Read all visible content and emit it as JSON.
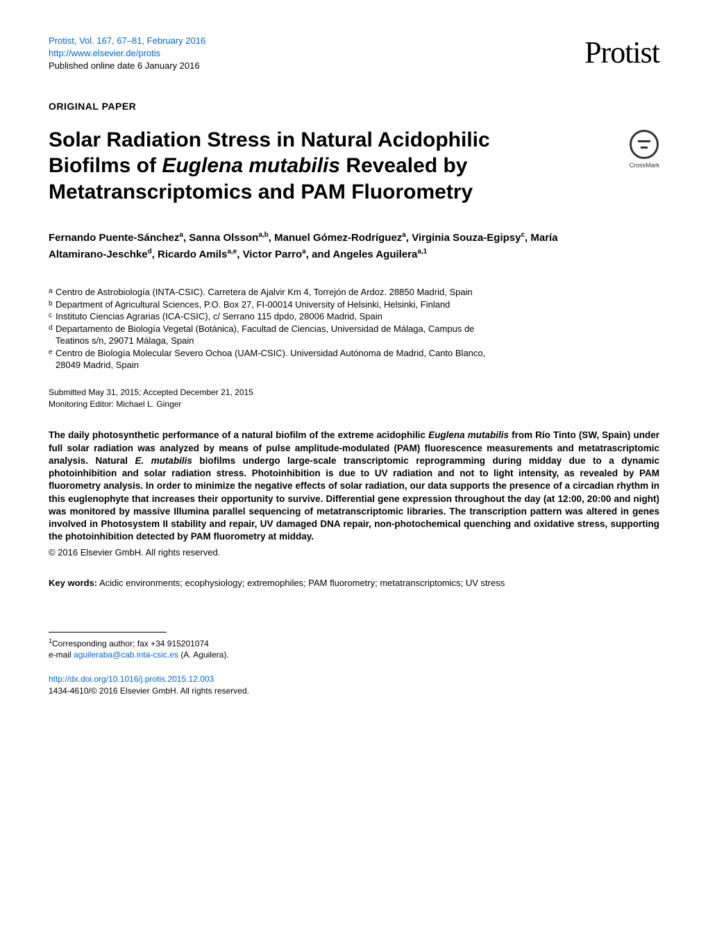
{
  "header": {
    "journal_citation": "Protist, Vol. 167, 67–81, February 2016",
    "journal_url": "http://www.elsevier.de/protis",
    "pub_online": "Published online date 6 January 2016",
    "journal_name": "Protist"
  },
  "paper_type": "ORIGINAL PAPER",
  "title_parts": {
    "pre": "Solar Radiation Stress in Natural Acidophilic Biofilms of ",
    "italic": "Euglena mutabilis",
    "post": " Revealed by Metatranscriptomics and PAM Fluorometry"
  },
  "crossmark_label": "CrossMark",
  "authors": [
    {
      "name": "Fernando Puente-Sánchez",
      "aff": "a",
      "sep": ",  "
    },
    {
      "name": "Sanna Olsson",
      "aff": "a,b",
      "sep": ",  "
    },
    {
      "name": "Manuel Gómez-Rodríguez",
      "aff": "a",
      "sep": ", "
    },
    {
      "name": "Virginia Souza-Egipsy",
      "aff": "c",
      "sep": ",  "
    },
    {
      "name": "María Altamirano-Jeschke",
      "aff": "d",
      "sep": ",  "
    },
    {
      "name": "Ricardo Amils",
      "aff": "a,e",
      "sep": ", "
    },
    {
      "name": "Victor Parro",
      "aff": "a",
      "sep": ", and  "
    },
    {
      "name": "Angeles Aguilera",
      "aff": "a,1",
      "sep": ""
    }
  ],
  "affiliations": [
    {
      "key": "a",
      "text": "Centro de Astrobiología (INTA-CSIC). Carretera de Ajalvir Km 4, Torrejón de Ardoz. 28850 Madrid, Spain"
    },
    {
      "key": "b",
      "text": "Department of Agricultural Sciences, P.O. Box 27, FI-00014 University of Helsinki, Helsinki, Finland"
    },
    {
      "key": "c",
      "text": "Instituto Ciencias Agrarias (ICA-CSIC), c/ Serrano 115 dpdo, 28006 Madrid, Spain"
    },
    {
      "key": "d",
      "text": "Departamento de Biología Vegetal (Botánica), Facultad de Ciencias, Universidad de Málaga, Campus de Teatinos s/n, 29071 Málaga, Spain"
    },
    {
      "key": "e",
      "text": "Centro de Biología Molecular Severo Ochoa (UAM-CSIC). Universidad Autónoma de Madrid, Canto Blanco, 28049 Madrid, Spain"
    }
  ],
  "dates": {
    "submitted_accepted": "Submitted May 31, 2015; Accepted December 21, 2015",
    "editor": "Monitoring Editor: Michael L. Ginger"
  },
  "abstract": {
    "p1a": "The daily photosynthetic performance of a natural biofilm of the extreme acidophilic ",
    "p1b": "Euglena mutabilis",
    "p1c": " from Río Tinto (SW, Spain) under full solar radiation was analyzed by means of pulse amplitude-modulated (PAM) fluorescence measurements and metatrascriptomic analysis. Natural ",
    "p1d": "E. mutabilis",
    "p1e": " biofilms undergo large-scale transcriptomic reprogramming during midday due to a dynamic photoinhibition and solar radiation stress. Photoinhibition is due to UV radiation and not to light intensity, as revealed by PAM fluorometry analysis. In order to minimize the negative effects of solar radiation, our data supports the presence of a circadian rhythm in this euglenophyte that increases their opportunity to survive. Differential gene expression throughout the day (at 12:00, 20:00 and night) was monitored by massive Illumina parallel sequencing of metatranscriptomic libraries. The transcription pattern was altered in genes involved in Photosystem II stability and repair, UV damaged DNA repair, non-photochemical quenching and oxidative stress, supporting the photoinhibition detected by PAM fluorometry at midday."
  },
  "copyright": "© 2016 Elsevier GmbH. All rights reserved.",
  "keywords": {
    "label": "Key words:",
    "text": " Acidic environments; ecophysiology; extremophiles; PAM fluorometry; metatranscriptomics; UV stress"
  },
  "footnote": {
    "mark": "1",
    "line1": "Corresponding author; fax +34 915201074",
    "line2_pre": "e-mail ",
    "email": "aguileraba@cab.inta-csic.es",
    "line2_post": " (A. Aguilera)."
  },
  "doi": {
    "url": "http://dx.doi.org/10.1016/j.protis.2015.12.003",
    "issn_copy": "1434-4610/© 2016 Elsevier GmbH. All rights reserved."
  },
  "colors": {
    "link": "#0066cc",
    "text": "#000000",
    "bg": "#ffffff",
    "crossmark_stroke": "#333333"
  }
}
